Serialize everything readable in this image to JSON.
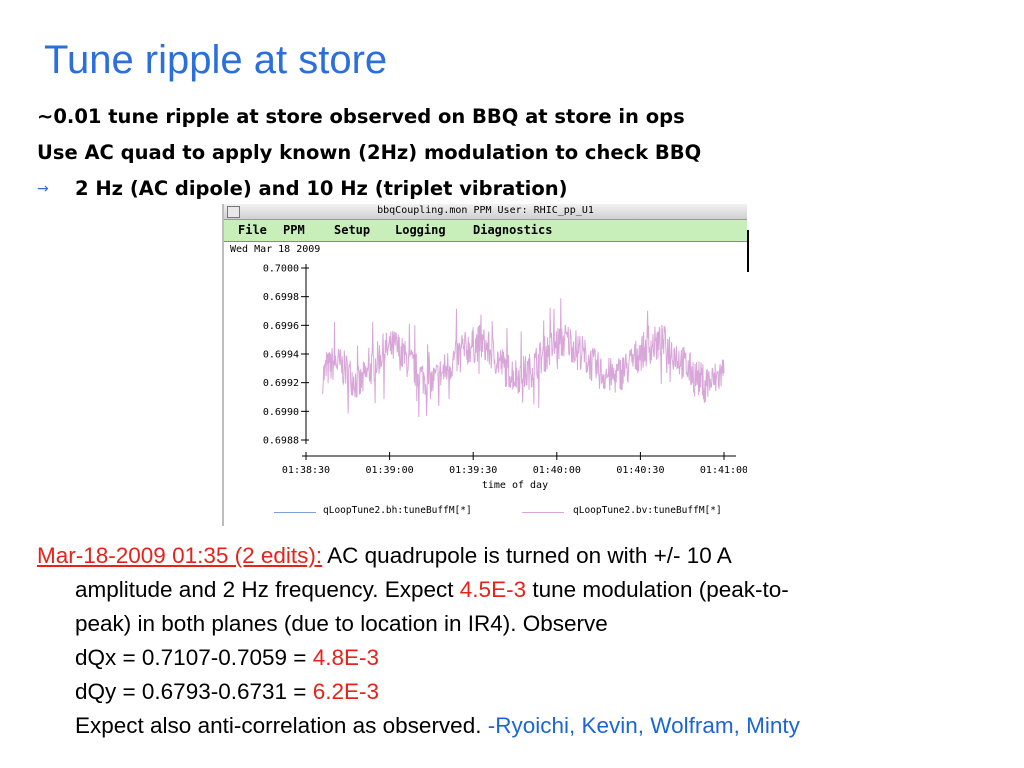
{
  "slide": {
    "title": "Tune ripple at store",
    "bullets": [
      "~0.01 tune ripple at store observed on BBQ at store in ops",
      "Use AC quad to apply known (2Hz) modulation to check BBQ"
    ],
    "sub_bullet": "2 Hz (AC dipole) and 10 Hz (triplet vibration)",
    "arrow_icon": "→"
  },
  "window": {
    "title": "bbqCoupling.mon      PPM User: RHIC_pp_U1",
    "menu": [
      "File",
      "PPM",
      "Setup",
      "Logging",
      "Diagnostics"
    ],
    "date": "Wed Mar 18 2009",
    "menu_bg": "#c8efb9"
  },
  "chart_data": {
    "type": "line",
    "xlabel": "time of day",
    "ylabel": "",
    "x_ticks": [
      "01:38:30",
      "01:39:00",
      "01:39:30",
      "01:40:00",
      "01:40:30",
      "01:41:00"
    ],
    "y_ticks": [
      "0.7000",
      "0.6998",
      "0.6996",
      "0.6994",
      "0.6992",
      "0.6990",
      "0.6988"
    ],
    "ylim": [
      0.6988,
      0.7
    ],
    "xlim": [
      "01:38:30",
      "01:41:00"
    ],
    "data_time_range": [
      "01:38:36",
      "01:41:00"
    ],
    "series": [
      {
        "name": "qLoopTune2.bh:tuneBuffM[*]",
        "color": "#7f9fd8",
        "values": []
      },
      {
        "name": "qLoopTune2.bv:tuneBuffM[*]",
        "color": "#d8a6d8",
        "values": [
          0.69925,
          0.69935,
          0.69928,
          0.69918,
          0.6993,
          0.69942,
          0.69945,
          0.69935,
          0.69925,
          0.6992,
          0.69928,
          0.69938,
          0.69945,
          0.69948,
          0.6994,
          0.6993,
          0.69925,
          0.69928,
          0.69938,
          0.69946,
          0.6995,
          0.69944,
          0.69934,
          0.69926,
          0.69924,
          0.6993,
          0.6994,
          0.69946,
          0.69948,
          0.6994,
          0.6993,
          0.69922,
          0.6992,
          0.69928
        ]
      }
    ]
  },
  "notes": {
    "date_link": "Mar-18-2009 01:35 (2 edits):",
    "line1_rest": " AC quadrupole is turned on with +/- 10 A",
    "line2_a": "amplitude and 2 Hz frequency. Expect ",
    "line2_red": "4.5E-3",
    "line2_b": " tune modulation (peak-to-",
    "line3": "peak) in both planes (due to location in IR4). Observe",
    "dqx_text": "dQx = 0.7107-0.7059 = ",
    "dqx_val": "4.8E-3",
    "dqy_text": "dQy = 0.6793-0.6731 = ",
    "dqy_val": "6.2E-3",
    "last_text": "Expect also anti-correlation as observed. ",
    "authors": "-Ryoichi, Kevin, Wolfram, Minty"
  }
}
